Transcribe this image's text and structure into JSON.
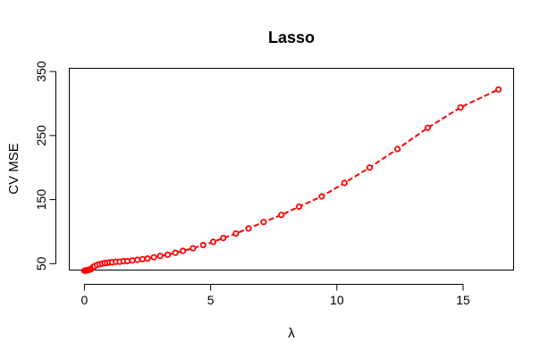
{
  "chart_data": {
    "type": "line",
    "title": "Lasso",
    "xlabel": "λ",
    "ylabel": "CV MSE",
    "xlim": [
      -0.6,
      17
    ],
    "ylim": [
      40,
      355
    ],
    "x_ticks": [
      0,
      5,
      10,
      15
    ],
    "y_ticks": [
      50,
      150,
      250,
      350
    ],
    "grid": false,
    "legend": "none",
    "series": [
      {
        "color": "#ff0000",
        "marker": "open-circle",
        "line_style": "dashed",
        "x": [
          0.0,
          0.05,
          0.1,
          0.15,
          0.2,
          0.25,
          0.3,
          0.35,
          0.4,
          0.5,
          0.6,
          0.7,
          0.8,
          0.9,
          1.0,
          1.1,
          1.25,
          1.4,
          1.55,
          1.7,
          1.9,
          2.1,
          2.3,
          2.5,
          2.75,
          3.0,
          3.3,
          3.6,
          3.9,
          4.3,
          4.7,
          5.1,
          5.5,
          6.0,
          6.5,
          7.1,
          7.8,
          8.5,
          9.4,
          10.3,
          11.3,
          12.4,
          13.6,
          14.9,
          16.4
        ],
        "y": [
          39,
          39,
          40,
          40,
          41,
          41,
          43,
          45,
          46,
          48,
          49,
          50,
          51,
          51,
          52,
          52,
          53,
          53,
          54,
          54,
          55,
          56,
          57,
          58,
          60,
          62,
          64,
          67,
          70,
          74,
          79,
          84,
          90,
          97,
          105,
          115,
          126,
          139,
          155,
          176,
          200,
          229,
          262,
          294,
          322
        ]
      }
    ]
  }
}
